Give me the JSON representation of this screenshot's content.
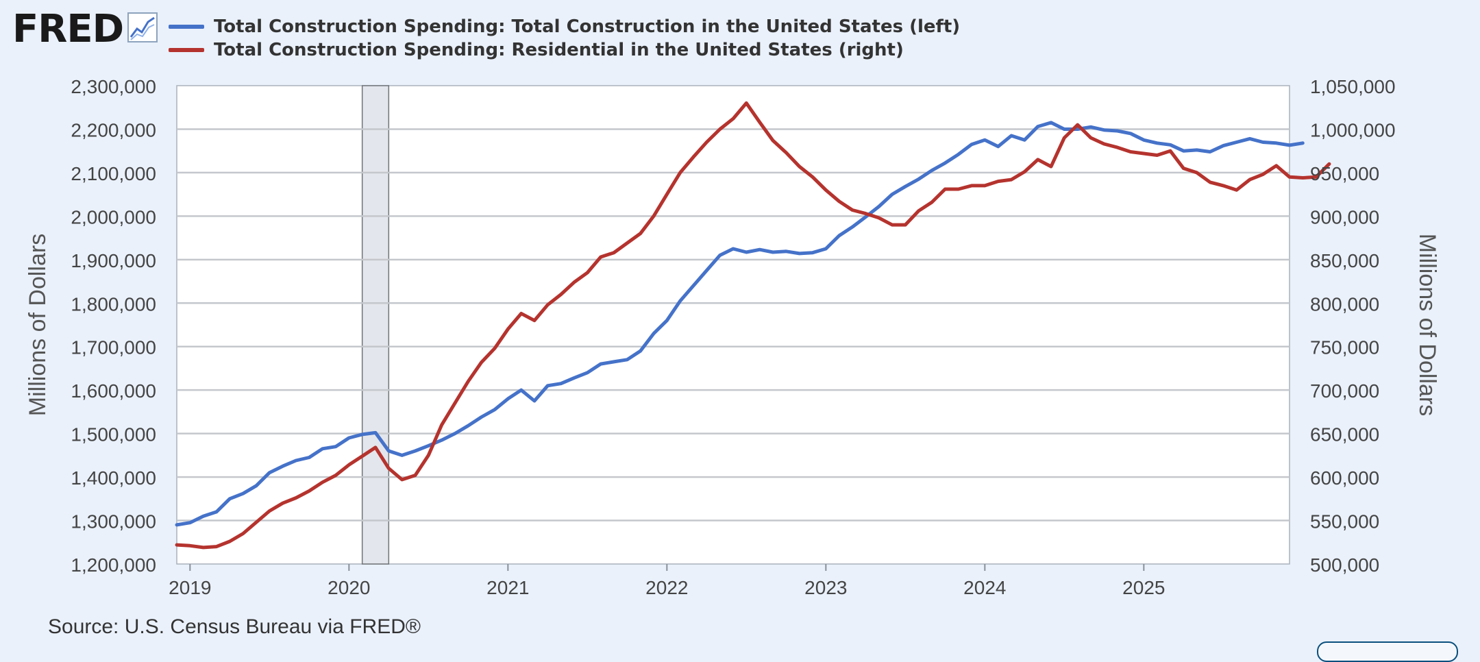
{
  "logo": {
    "text": "FRED",
    "icon": "line-chart-icon"
  },
  "source": "Source: U.S. Census Bureau via FRED®",
  "chart_data": {
    "type": "line",
    "title": "",
    "xlabel": "",
    "ylabel_left": "Millions of Dollars",
    "ylabel_right": "Millions of Dollars",
    "ylim_left": [
      1200000,
      2300000
    ],
    "ylim_right": [
      500000,
      1050000
    ],
    "yticks_left": [
      "1,200,000",
      "1,300,000",
      "1,400,000",
      "1,500,000",
      "1,600,000",
      "1,700,000",
      "1,800,000",
      "1,900,000",
      "2,000,000",
      "2,100,000",
      "2,200,000",
      "2,300,000"
    ],
    "yticks_right": [
      "500,000",
      "550,000",
      "600,000",
      "650,000",
      "700,000",
      "750,000",
      "800,000",
      "850,000",
      "900,000",
      "950,000",
      "1,000,000",
      "1,050,000"
    ],
    "xticks": [
      "2019",
      "2020",
      "2021",
      "2022",
      "2023",
      "2024",
      "2025"
    ],
    "x_range": [
      "2018-12",
      "2025-12"
    ],
    "grid": true,
    "legend_position": "top-left",
    "recession": {
      "start": "2020-02",
      "end": "2020-04"
    },
    "series": [
      {
        "name": "Total Construction Spending: Total Construction in the United States (left)",
        "axis": "left",
        "color": "#4572c9",
        "start": "2018-12",
        "values": [
          1290000,
          1295000,
          1310000,
          1320000,
          1350000,
          1362000,
          1380000,
          1410000,
          1425000,
          1438000,
          1445000,
          1465000,
          1470000,
          1490000,
          1498000,
          1502000,
          1460000,
          1450000,
          1460000,
          1472000,
          1485000,
          1500000,
          1518000,
          1538000,
          1555000,
          1580000,
          1600000,
          1575000,
          1610000,
          1615000,
          1628000,
          1640000,
          1660000,
          1665000,
          1670000,
          1690000,
          1730000,
          1760000,
          1805000,
          1840000,
          1875000,
          1910000,
          1925000,
          1917000,
          1923000,
          1917000,
          1919000,
          1914000,
          1916000,
          1925000,
          1955000,
          1975000,
          1998000,
          2022000,
          2050000,
          2068000,
          2085000,
          2105000,
          2122000,
          2142000,
          2165000,
          2175000,
          2160000,
          2185000,
          2175000,
          2206000,
          2215000,
          2200000,
          2200000,
          2205000,
          2198000,
          2196000,
          2190000,
          2175000,
          2168000,
          2164000,
          2150000,
          2152000,
          2148000,
          2162000,
          2170000,
          2178000,
          2170000,
          2168000,
          2163000,
          2168000
        ]
      },
      {
        "name": "Total Construction Spending: Residential in the United States (right)",
        "axis": "right",
        "color": "#b5332e",
        "start": "2018-12",
        "values": [
          522000,
          521000,
          519000,
          520000,
          526000,
          535000,
          548000,
          561000,
          570000,
          576000,
          584000,
          594000,
          602000,
          614000,
          624000,
          634000,
          610000,
          597000,
          602000,
          625000,
          660000,
          685000,
          710000,
          732000,
          748000,
          770000,
          788000,
          780000,
          798000,
          810000,
          824000,
          835000,
          853000,
          858000,
          869000,
          880000,
          900000,
          925000,
          950000,
          968000,
          985000,
          1000000,
          1012000,
          1030000,
          1008000,
          987000,
          973000,
          957000,
          945000,
          930000,
          917000,
          907000,
          903000,
          898000,
          890000,
          890000,
          906000,
          916000,
          931000,
          931000,
          935000,
          935000,
          940000,
          942000,
          951000,
          965000,
          957000,
          990000,
          1005000,
          990000,
          983000,
          979000,
          974000,
          972000,
          970000,
          975000,
          955000,
          950000,
          939000,
          935000,
          930000,
          942000,
          948000,
          958000,
          945000,
          944000,
          945000,
          960000
        ]
      }
    ]
  }
}
